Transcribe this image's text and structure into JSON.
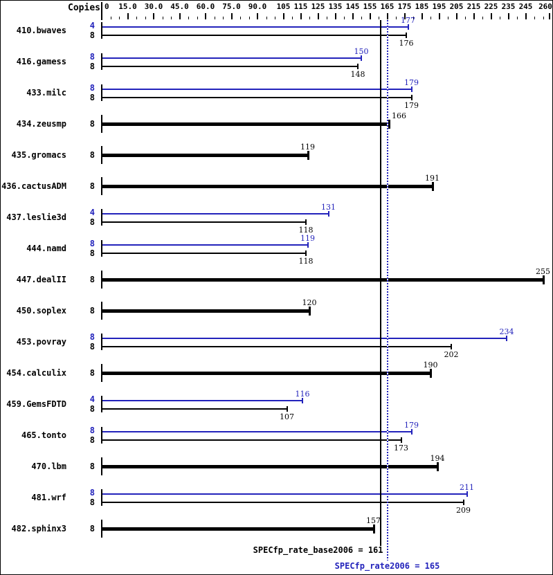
{
  "header": {
    "copies_label": "Copies"
  },
  "colors": {
    "base": "#000000",
    "peak": "#2222bb",
    "background": "#ffffff"
  },
  "axis": {
    "unit_min": 0,
    "unit_max": 262,
    "minor_step": 5,
    "major_ticks": [
      0,
      15,
      30,
      45,
      60,
      75,
      90,
      105,
      115,
      125,
      135,
      145,
      155,
      165,
      175,
      185,
      195,
      205,
      215,
      225,
      235,
      245,
      260
    ],
    "major_labels": [
      "0",
      "15.0",
      "30.0",
      "45.0",
      "60.0",
      "75.0",
      "90.0",
      "105",
      "115",
      "125",
      "135",
      "145",
      "155",
      "165",
      "175",
      "185",
      "195",
      "205",
      "215",
      "225",
      "235",
      "245",
      "260"
    ]
  },
  "chart_data": {
    "type": "bar",
    "orientation": "horizontal",
    "xlabel": "Copies",
    "xlim": [
      0,
      262
    ],
    "series_meaning": {
      "peak": "SPECfp_rate2006 (blue)",
      "base": "SPECfp_rate_base2006 (black)",
      "both": "base and peak equal (thick black)"
    },
    "rows": [
      {
        "benchmark": "410.bwaves",
        "bars": [
          {
            "series": "peak",
            "copies": "4",
            "value": 177
          },
          {
            "series": "base",
            "copies": "8",
            "value": 176
          }
        ]
      },
      {
        "benchmark": "416.gamess",
        "bars": [
          {
            "series": "peak",
            "copies": "8",
            "value": 150
          },
          {
            "series": "base",
            "copies": "8",
            "value": 148
          }
        ]
      },
      {
        "benchmark": "433.milc",
        "bars": [
          {
            "series": "peak",
            "copies": "8",
            "value": 179
          },
          {
            "series": "base",
            "copies": "8",
            "value": 179
          }
        ]
      },
      {
        "benchmark": "434.zeusmp",
        "bars": [
          {
            "series": "both",
            "copies": "8",
            "value": 166
          }
        ]
      },
      {
        "benchmark": "435.gromacs",
        "bars": [
          {
            "series": "both",
            "copies": "8",
            "value": 119
          }
        ]
      },
      {
        "benchmark": "436.cactusADM",
        "bars": [
          {
            "series": "both",
            "copies": "8",
            "value": 191
          }
        ]
      },
      {
        "benchmark": "437.leslie3d",
        "bars": [
          {
            "series": "peak",
            "copies": "4",
            "value": 131
          },
          {
            "series": "base",
            "copies": "8",
            "value": 118
          }
        ]
      },
      {
        "benchmark": "444.namd",
        "bars": [
          {
            "series": "peak",
            "copies": "8",
            "value": 119
          },
          {
            "series": "base",
            "copies": "8",
            "value": 118
          }
        ]
      },
      {
        "benchmark": "447.dealII",
        "bars": [
          {
            "series": "both",
            "copies": "8",
            "value": 255
          }
        ]
      },
      {
        "benchmark": "450.soplex",
        "bars": [
          {
            "series": "both",
            "copies": "8",
            "value": 120
          }
        ]
      },
      {
        "benchmark": "453.povray",
        "bars": [
          {
            "series": "peak",
            "copies": "8",
            "value": 234
          },
          {
            "series": "base",
            "copies": "8",
            "value": 202
          }
        ]
      },
      {
        "benchmark": "454.calculix",
        "bars": [
          {
            "series": "both",
            "copies": "8",
            "value": 190
          }
        ]
      },
      {
        "benchmark": "459.GemsFDTD",
        "bars": [
          {
            "series": "peak",
            "copies": "4",
            "value": 116
          },
          {
            "series": "base",
            "copies": "8",
            "value": 107
          }
        ]
      },
      {
        "benchmark": "465.tonto",
        "bars": [
          {
            "series": "peak",
            "copies": "8",
            "value": 179
          },
          {
            "series": "base",
            "copies": "8",
            "value": 173
          }
        ]
      },
      {
        "benchmark": "470.lbm",
        "bars": [
          {
            "series": "both",
            "copies": "8",
            "value": 194
          }
        ]
      },
      {
        "benchmark": "481.wrf",
        "bars": [
          {
            "series": "peak",
            "copies": "8",
            "value": 211
          },
          {
            "series": "base",
            "copies": "8",
            "value": 209
          }
        ]
      },
      {
        "benchmark": "482.sphinx3",
        "bars": [
          {
            "series": "both",
            "copies": "8",
            "value": 157
          }
        ]
      }
    ]
  },
  "reference_lines": [
    {
      "name": "base",
      "value": 161,
      "style": "solid",
      "color": "#000000"
    },
    {
      "name": "peak",
      "value": 165,
      "style": "dotted",
      "color": "#2222bb"
    }
  ],
  "summary": {
    "base": {
      "label": "SPECfp_rate_base2006",
      "value": 161,
      "text": "SPECfp_rate_base2006 = 161"
    },
    "peak": {
      "label": "SPECfp_rate2006",
      "value": 165,
      "text": "SPECfp_rate2006 = 165"
    }
  }
}
